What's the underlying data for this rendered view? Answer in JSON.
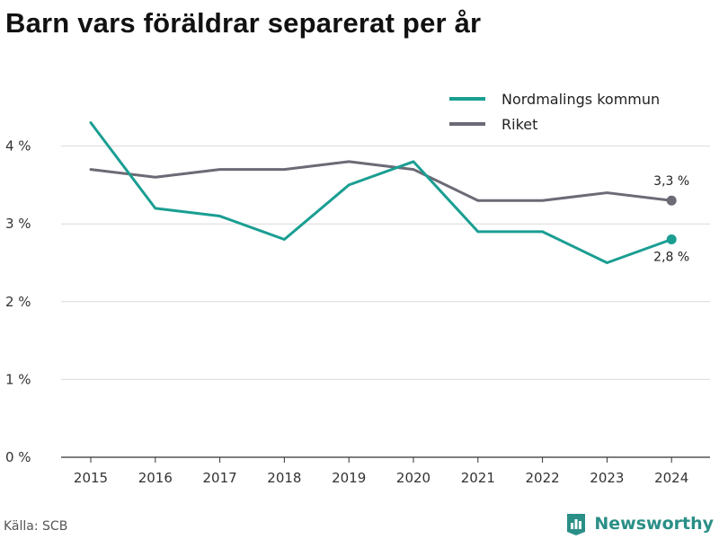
{
  "chart_data": {
    "type": "line",
    "title": "Barn vars föräldrar separerat per år",
    "x": [
      "2015",
      "2016",
      "2017",
      "2018",
      "2019",
      "2020",
      "2021",
      "2022",
      "2023",
      "2024"
    ],
    "y_ticks": [
      "0 %",
      "1 %",
      "2 %",
      "3 %",
      "4 %"
    ],
    "ylim": [
      0,
      4.6
    ],
    "grid": true,
    "legend_position": "top-right",
    "series": [
      {
        "name": "Nordmalings kommun",
        "color": "#1a9e92",
        "values": [
          4.3,
          3.2,
          3.1,
          2.8,
          3.5,
          3.8,
          2.9,
          2.9,
          2.5,
          2.8
        ],
        "end_label": "2,8 %"
      },
      {
        "name": "Riket",
        "color": "#6b6a75",
        "values": [
          3.7,
          3.6,
          3.7,
          3.7,
          3.8,
          3.7,
          3.3,
          3.3,
          3.4,
          3.3
        ],
        "end_label": "3,3 %"
      }
    ]
  },
  "source": "Källa: SCB",
  "brand": {
    "name": "Newsworthy",
    "icon": "newsworthy-logo-icon",
    "color": "#2a8f87"
  }
}
